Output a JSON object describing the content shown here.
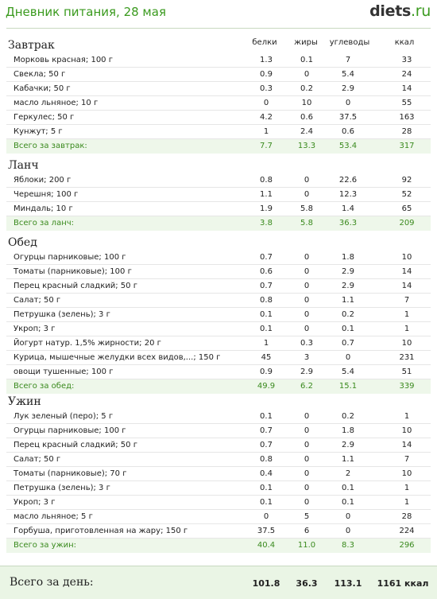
{
  "header": {
    "title": "Дневник питания, 28 мая",
    "logo_main": "diets",
    "logo_tld": ".ru"
  },
  "columns": {
    "protein": "белки",
    "fat": "жиры",
    "carbs": "углеводы",
    "kcal": "ккал"
  },
  "sections": [
    {
      "title": "Завтрак",
      "items": [
        {
          "name": "Морковь красная; 100 г",
          "b": "1.3",
          "f": "0.1",
          "c": "7",
          "k": "33"
        },
        {
          "name": "Свекла; 50 г",
          "b": "0.9",
          "f": "0",
          "c": "5.4",
          "k": "24"
        },
        {
          "name": "Кабачки; 50 г",
          "b": "0.3",
          "f": "0.2",
          "c": "2.9",
          "k": "14"
        },
        {
          "name": "масло льняное; 10 г",
          "b": "0",
          "f": "10",
          "c": "0",
          "k": "55"
        },
        {
          "name": "Геркулес; 50 г",
          "b": "4.2",
          "f": "0.6",
          "c": "37.5",
          "k": "163"
        },
        {
          "name": "Кунжут; 5 г",
          "b": "1",
          "f": "2.4",
          "c": "0.6",
          "k": "28"
        }
      ],
      "total": {
        "name": "Всего за завтрак:",
        "b": "7.7",
        "f": "13.3",
        "c": "53.4",
        "k": "317"
      }
    },
    {
      "title": "Ланч",
      "items": [
        {
          "name": "Яблоки; 200 г",
          "b": "0.8",
          "f": "0",
          "c": "22.6",
          "k": "92"
        },
        {
          "name": "Черешня; 100 г",
          "b": "1.1",
          "f": "0",
          "c": "12.3",
          "k": "52"
        },
        {
          "name": "Миндаль; 10 г",
          "b": "1.9",
          "f": "5.8",
          "c": "1.4",
          "k": "65"
        }
      ],
      "total": {
        "name": "Всего за ланч:",
        "b": "3.8",
        "f": "5.8",
        "c": "36.3",
        "k": "209"
      }
    },
    {
      "title": "Обед",
      "items": [
        {
          "name": "Огурцы парниковые; 100 г",
          "b": "0.7",
          "f": "0",
          "c": "1.8",
          "k": "10"
        },
        {
          "name": "Томаты (парниковые); 100 г",
          "b": "0.6",
          "f": "0",
          "c": "2.9",
          "k": "14"
        },
        {
          "name": "Перец красный сладкий; 50 г",
          "b": "0.7",
          "f": "0",
          "c": "2.9",
          "k": "14"
        },
        {
          "name": "Салат; 50 г",
          "b": "0.8",
          "f": "0",
          "c": "1.1",
          "k": "7"
        },
        {
          "name": "Петрушка (зелень); 3 г",
          "b": "0.1",
          "f": "0",
          "c": "0.2",
          "k": "1"
        },
        {
          "name": "Укроп; 3 г",
          "b": "0.1",
          "f": "0",
          "c": "0.1",
          "k": "1"
        },
        {
          "name": "Йогурт натур. 1,5% жирности; 20 г",
          "b": "1",
          "f": "0.3",
          "c": "0.7",
          "k": "10"
        },
        {
          "name": "Курица, мышечные желудки всех видов,...; 150 г",
          "b": "45",
          "f": "3",
          "c": "0",
          "k": "231"
        },
        {
          "name": "овощи тушенные; 100 г",
          "b": "0.9",
          "f": "2.9",
          "c": "5.4",
          "k": "51"
        }
      ],
      "total": {
        "name": "Всего за обед:",
        "b": "49.9",
        "f": "6.2",
        "c": "15.1",
        "k": "339"
      }
    },
    {
      "title": "Ужин",
      "items": [
        {
          "name": "Лук зеленый (перо); 5 г",
          "b": "0.1",
          "f": "0",
          "c": "0.2",
          "k": "1"
        },
        {
          "name": "Огурцы парниковые; 100 г",
          "b": "0.7",
          "f": "0",
          "c": "1.8",
          "k": "10"
        },
        {
          "name": "Перец красный сладкий; 50 г",
          "b": "0.7",
          "f": "0",
          "c": "2.9",
          "k": "14"
        },
        {
          "name": "Салат; 50 г",
          "b": "0.8",
          "f": "0",
          "c": "1.1",
          "k": "7"
        },
        {
          "name": "Томаты (парниковые); 70 г",
          "b": "0.4",
          "f": "0",
          "c": "2",
          "k": "10"
        },
        {
          "name": "Петрушка (зелень); 3 г",
          "b": "0.1",
          "f": "0",
          "c": "0.1",
          "k": "1"
        },
        {
          "name": "Укроп; 3 г",
          "b": "0.1",
          "f": "0",
          "c": "0.1",
          "k": "1"
        },
        {
          "name": "масло льняное; 5 г",
          "b": "0",
          "f": "5",
          "c": "0",
          "k": "28"
        },
        {
          "name": "Горбуша, приготовленная на жару; 150 г",
          "b": "37.5",
          "f": "6",
          "c": "0",
          "k": "224"
        }
      ],
      "total": {
        "name": "Всего за ужин:",
        "b": "40.4",
        "f": "11.0",
        "c": "8.3",
        "k": "296"
      }
    }
  ],
  "day_total": {
    "label": "Всего за день:",
    "b": "101.8",
    "f": "36.3",
    "c": "113.1",
    "k": "1161 ккал"
  },
  "colors": {
    "accent": "#3a9a1e",
    "total_bg": "#eef7ea"
  }
}
